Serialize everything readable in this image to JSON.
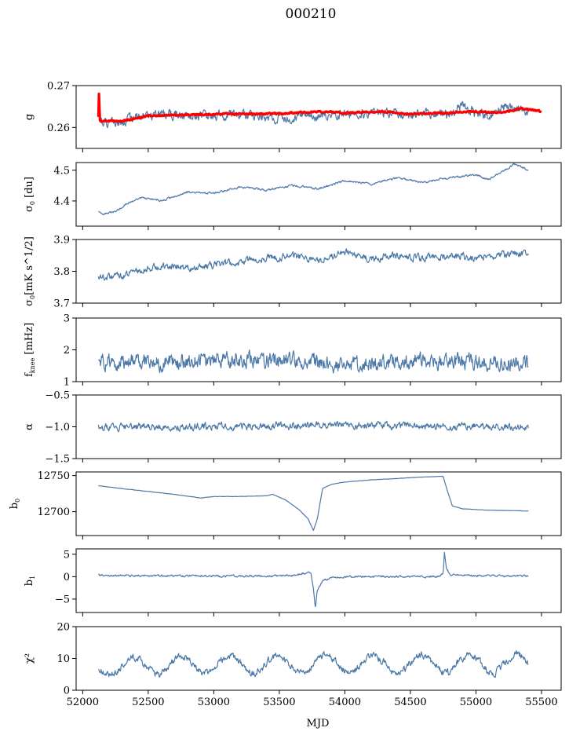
{
  "figure": {
    "title": "000210",
    "xlabel": "MJD"
  },
  "chart_data": [
    {
      "type": "line",
      "ylabel": "g",
      "xlim": [
        51950,
        55650
      ],
      "ylim": [
        0.255,
        0.27
      ],
      "xticks": [
        52000,
        52500,
        53000,
        53500,
        54000,
        54500,
        55000,
        55500
      ],
      "yticks": [
        {
          "v": 0.26,
          "label": "0.26"
        },
        {
          "v": 0.27,
          "label": "0.27"
        }
      ],
      "series": [
        {
          "role": "measured",
          "color": "#4c78a8",
          "noise": 0.0009,
          "seed": 1,
          "points": [
            [
              52120,
              0.2635
            ],
            [
              52150,
              0.2612
            ],
            [
              52250,
              0.2608
            ],
            [
              52400,
              0.2625
            ],
            [
              52600,
              0.263
            ],
            [
              52800,
              0.2632
            ],
            [
              53000,
              0.2628
            ],
            [
              53200,
              0.2632
            ],
            [
              53400,
              0.2622
            ],
            [
              53600,
              0.2625
            ],
            [
              53800,
              0.2628
            ],
            [
              54000,
              0.2632
            ],
            [
              54200,
              0.2638
            ],
            [
              54400,
              0.2632
            ],
            [
              54600,
              0.2632
            ],
            [
              54800,
              0.2628
            ],
            [
              54900,
              0.2655
            ],
            [
              55000,
              0.2632
            ],
            [
              55100,
              0.2625
            ],
            [
              55200,
              0.2648
            ],
            [
              55300,
              0.2645
            ],
            [
              55400,
              0.264
            ]
          ]
        },
        {
          "role": "model",
          "color": "#ff0000",
          "noise": 0.00015,
          "seed": 2,
          "points": [
            [
              52120,
              0.2625
            ],
            [
              52125,
              0.2695
            ],
            [
              52130,
              0.2615
            ],
            [
              52300,
              0.2615
            ],
            [
              52500,
              0.2628
            ],
            [
              53000,
              0.2632
            ],
            [
              53500,
              0.2633
            ],
            [
              53800,
              0.2638
            ],
            [
              54000,
              0.2635
            ],
            [
              54300,
              0.2638
            ],
            [
              54500,
              0.2632
            ],
            [
              54800,
              0.2635
            ],
            [
              55000,
              0.2638
            ],
            [
              55200,
              0.2636
            ],
            [
              55350,
              0.2646
            ],
            [
              55500,
              0.2638
            ]
          ]
        }
      ]
    },
    {
      "type": "line",
      "ylabel": "σ0 [du]",
      "xlim": [
        51950,
        55650
      ],
      "ylim": [
        4.318,
        4.525
      ],
      "xticks": [
        52000,
        52500,
        53000,
        53500,
        54000,
        54500,
        55000,
        55500
      ],
      "yticks": [
        {
          "v": 4.4,
          "label": "4.4"
        },
        {
          "v": 4.5,
          "label": "4.5"
        }
      ],
      "series": [
        {
          "role": "measured",
          "color": "#4c78a8",
          "noise": 0.0028,
          "seed": 3,
          "points": [
            [
              52120,
              4.365
            ],
            [
              52150,
              4.355
            ],
            [
              52250,
              4.365
            ],
            [
              52350,
              4.395
            ],
            [
              52450,
              4.41
            ],
            [
              52600,
              4.4
            ],
            [
              52800,
              4.43
            ],
            [
              53000,
              4.425
            ],
            [
              53200,
              4.445
            ],
            [
              53400,
              4.435
            ],
            [
              53600,
              4.45
            ],
            [
              53800,
              4.44
            ],
            [
              54000,
              4.465
            ],
            [
              54200,
              4.455
            ],
            [
              54400,
              4.475
            ],
            [
              54600,
              4.46
            ],
            [
              54800,
              4.475
            ],
            [
              55000,
              4.485
            ],
            [
              55100,
              4.47
            ],
            [
              55200,
              4.495
            ],
            [
              55300,
              4.52
            ],
            [
              55400,
              4.5
            ]
          ]
        }
      ]
    },
    {
      "type": "line",
      "ylabel": "σ0[mK s^1/2]",
      "xlim": [
        51950,
        55650
      ],
      "ylim": [
        3.7,
        3.9
      ],
      "xticks": [
        52000,
        52500,
        53000,
        53500,
        54000,
        54500,
        55000,
        55500
      ],
      "yticks": [
        {
          "v": 3.7,
          "label": "3.7"
        },
        {
          "v": 3.8,
          "label": "3.8"
        },
        {
          "v": 3.9,
          "label": "3.9"
        }
      ],
      "series": [
        {
          "role": "measured",
          "color": "#4c78a8",
          "noise": 0.009,
          "seed": 4,
          "points": [
            [
              52120,
              3.78
            ],
            [
              52200,
              3.78
            ],
            [
              52400,
              3.8
            ],
            [
              52600,
              3.82
            ],
            [
              52800,
              3.81
            ],
            [
              53000,
              3.82
            ],
            [
              53200,
              3.83
            ],
            [
              53400,
              3.84
            ],
            [
              53600,
              3.85
            ],
            [
              53800,
              3.83
            ],
            [
              54000,
              3.86
            ],
            [
              54200,
              3.84
            ],
            [
              54400,
              3.85
            ],
            [
              54600,
              3.84
            ],
            [
              54800,
              3.85
            ],
            [
              55000,
              3.84
            ],
            [
              55200,
              3.85
            ],
            [
              55400,
              3.86
            ]
          ]
        }
      ]
    },
    {
      "type": "line",
      "ylabel": "f_knee [mHz]",
      "xlim": [
        51950,
        55650
      ],
      "ylim": [
        1,
        3
      ],
      "xticks": [
        52000,
        52500,
        53000,
        53500,
        54000,
        54500,
        55000,
        55500
      ],
      "yticks": [
        {
          "v": 1,
          "label": "1"
        },
        {
          "v": 2,
          "label": "2"
        },
        {
          "v": 3,
          "label": "3"
        }
      ],
      "series": [
        {
          "role": "measured",
          "color": "#4c78a8",
          "noise": 0.2,
          "seed": 5,
          "points": [
            [
              52120,
              1.6
            ],
            [
              52500,
              1.6
            ],
            [
              53000,
              1.65
            ],
            [
              53500,
              1.7
            ],
            [
              53800,
              1.6
            ],
            [
              54000,
              1.5
            ],
            [
              54500,
              1.65
            ],
            [
              55000,
              1.6
            ],
            [
              55400,
              1.6
            ]
          ]
        }
      ]
    },
    {
      "type": "line",
      "ylabel": "α",
      "xlim": [
        51950,
        55650
      ],
      "ylim": [
        -1.5,
        -0.5
      ],
      "xticks": [
        52000,
        52500,
        53000,
        53500,
        54000,
        54500,
        55000,
        55500
      ],
      "yticks": [
        {
          "v": -1.5,
          "label": "−1.5"
        },
        {
          "v": -1.0,
          "label": "−1.0"
        },
        {
          "v": -0.5,
          "label": "−0.5"
        }
      ],
      "series": [
        {
          "role": "measured",
          "color": "#4c78a8",
          "noise": 0.045,
          "seed": 6,
          "points": [
            [
              52120,
              -1.0
            ],
            [
              53000,
              -1.0
            ],
            [
              54000,
              -0.98
            ],
            [
              55000,
              -0.99
            ],
            [
              55400,
              -1.0
            ]
          ]
        }
      ]
    },
    {
      "type": "line",
      "ylabel": "b0",
      "xlim": [
        51950,
        55650
      ],
      "ylim": [
        12667,
        12755
      ],
      "xticks": [
        52000,
        52500,
        53000,
        53500,
        54000,
        54500,
        55000,
        55500
      ],
      "yticks": [
        {
          "v": 12700,
          "label": "12700"
        },
        {
          "v": 12750,
          "label": "12750"
        }
      ],
      "series": [
        {
          "role": "measured",
          "color": "#4c78a8",
          "noise": 0.15,
          "seed": 7,
          "points": [
            [
              52120,
              12736
            ],
            [
              52300,
              12732
            ],
            [
              52500,
              12728
            ],
            [
              52700,
              12724
            ],
            [
              52900,
              12719
            ],
            [
              53000,
              12721
            ],
            [
              53200,
              12721
            ],
            [
              53400,
              12722
            ],
            [
              53450,
              12724
            ],
            [
              53550,
              12716
            ],
            [
              53650,
              12703
            ],
            [
              53720,
              12690
            ],
            [
              53760,
              12674
            ],
            [
              53790,
              12690
            ],
            [
              53830,
              12732
            ],
            [
              53900,
              12738
            ],
            [
              54000,
              12741
            ],
            [
              54200,
              12744
            ],
            [
              54400,
              12746
            ],
            [
              54600,
              12748
            ],
            [
              54750,
              12749
            ],
            [
              54780,
              12730
            ],
            [
              54820,
              12708
            ],
            [
              54900,
              12704
            ],
            [
              55100,
              12702
            ],
            [
              55400,
              12701
            ]
          ]
        }
      ]
    },
    {
      "type": "line",
      "ylabel": "b1",
      "xlim": [
        51950,
        55650
      ],
      "ylim": [
        -8,
        6.2
      ],
      "xticks": [
        52000,
        52500,
        53000,
        53500,
        54000,
        54500,
        55000,
        55500
      ],
      "yticks": [
        {
          "v": -5,
          "label": "−5"
        },
        {
          "v": 0,
          "label": "0"
        },
        {
          "v": 5,
          "label": "5"
        }
      ],
      "series": [
        {
          "role": "measured",
          "color": "#4c78a8",
          "noise": 0.18,
          "seed": 8,
          "points": [
            [
              52120,
              0.3
            ],
            [
              53000,
              0.1
            ],
            [
              53600,
              0.2
            ],
            [
              53700,
              0.8
            ],
            [
              53740,
              1.0
            ],
            [
              53760,
              -2.5
            ],
            [
              53775,
              -7
            ],
            [
              53790,
              -3
            ],
            [
              53830,
              -1
            ],
            [
              53900,
              -0.3
            ],
            [
              54000,
              0
            ],
            [
              54700,
              0
            ],
            [
              54750,
              0.6
            ],
            [
              54760,
              5.5
            ],
            [
              54775,
              2
            ],
            [
              54800,
              0.5
            ],
            [
              55000,
              0.3
            ],
            [
              55400,
              0.1
            ]
          ]
        }
      ]
    },
    {
      "type": "line",
      "ylabel": "χ²",
      "xlim": [
        51950,
        55650
      ],
      "ylim": [
        0,
        20
      ],
      "xticks": [
        52000,
        52500,
        53000,
        53500,
        54000,
        54500,
        55000,
        55500
      ],
      "yticks": [
        {
          "v": 0,
          "label": "0"
        },
        {
          "v": 10,
          "label": "10"
        },
        {
          "v": 20,
          "label": "20"
        }
      ],
      "series": [
        {
          "role": "measured",
          "color": "#4c78a8",
          "noise": 0.9,
          "seed": 9,
          "oscillation": {
            "period": 365,
            "amplitude": 2.8,
            "phase_x": 52300
          },
          "points": [
            [
              52120,
              7.5
            ],
            [
              52600,
              7.8
            ],
            [
              53000,
              8
            ],
            [
              54000,
              8.2
            ],
            [
              55000,
              8.3
            ],
            [
              55400,
              8.5
            ]
          ]
        }
      ]
    }
  ]
}
